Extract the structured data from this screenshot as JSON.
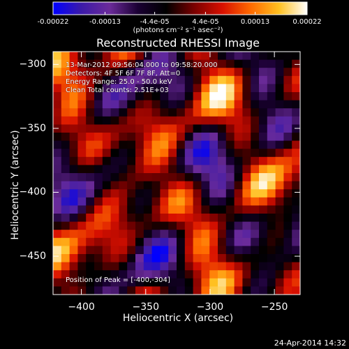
{
  "chart_data": {
    "type": "heatmap",
    "title": "Reconstructed RHESSI Image",
    "xlabel": "Heliocentric X (arcsec)",
    "ylabel": "Heliocentric Y (arcsec)",
    "xlim": [
      -422,
      -230
    ],
    "ylim": [
      -480,
      -290
    ],
    "x_ticks": [
      -400,
      -350,
      -300,
      -250
    ],
    "y_ticks": [
      -300,
      -350,
      -400,
      -450
    ],
    "colorbar": {
      "range": [
        -0.00022,
        0.00022
      ],
      "tick_labels": [
        "-0.00022",
        "-0.00013",
        "-4.4e-05",
        "4.4e-05",
        "0.00013",
        "0.00022"
      ],
      "label": "(photons cm⁻² s⁻¹ asec⁻²)",
      "colormap": [
        "#0000ff",
        "#3c1aa8",
        "#6b2b9a",
        "#1a0033",
        "#000000",
        "#7a0000",
        "#d81000",
        "#ff6a00",
        "#ffc020",
        "#ffffff"
      ]
    },
    "annotations": [
      "13-Mar-2012 09:56:04.000 to 09:58:20.000",
      "Detectors: 4F 5F 6F 7F 8F, Att=0",
      "Energy Range: 25.0 - 50.0 keV",
      "Clean      Total counts: 2.51E+03"
    ],
    "peak_label": "Position of Peak = [-400,-304]",
    "peak_position": [
      -400,
      -304
    ],
    "grid": false
  },
  "footer": {
    "date": "24-Apr-2014 14:32"
  }
}
